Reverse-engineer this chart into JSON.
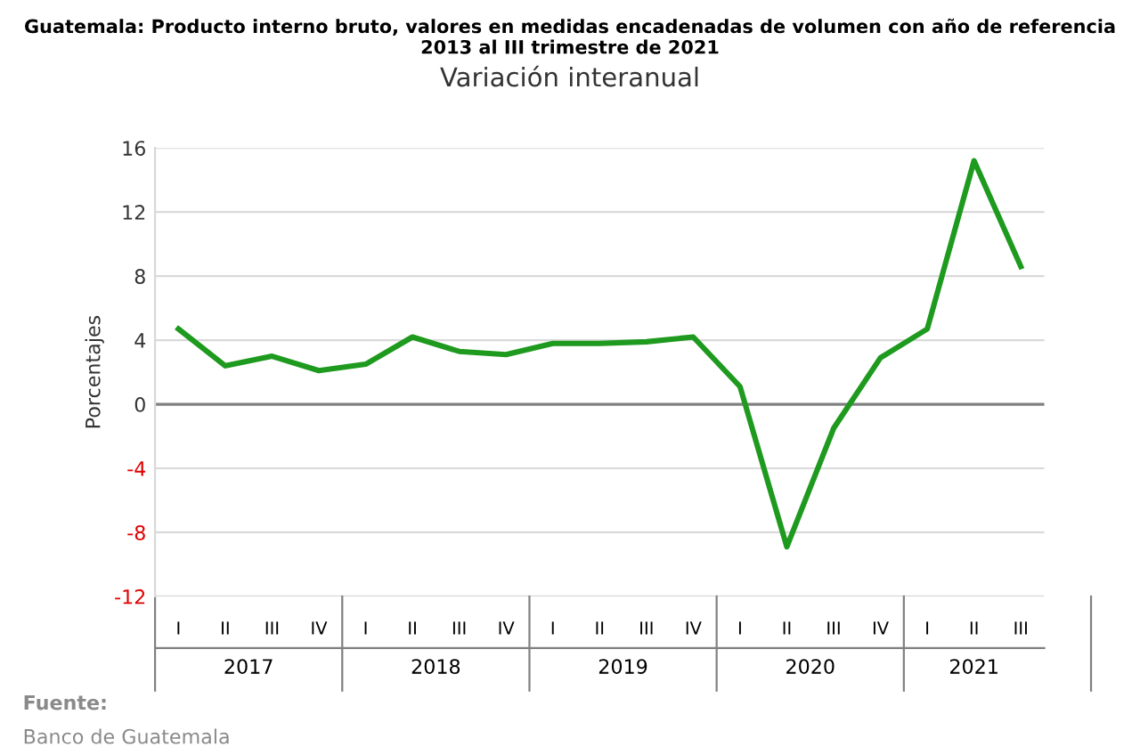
{
  "chart_data": {
    "type": "line",
    "title": "Guatemala: Producto interno bruto, valores en medidas encadenadas de volumen con año de referencia 2013 al III trimestre de 2021",
    "subtitle": "Variación interanual",
    "ylabel": "Porcentajes",
    "categories": [
      "I",
      "II",
      "III",
      "IV",
      "I",
      "II",
      "III",
      "IV",
      "I",
      "II",
      "III",
      "IV",
      "I",
      "II",
      "III",
      "IV",
      "I",
      "II",
      "III"
    ],
    "series": [
      {
        "color": "#1e9a1e",
        "values": [
          4.7,
          2.4,
          3.0,
          2.1,
          2.5,
          4.2,
          3.3,
          3.1,
          3.8,
          3.8,
          3.9,
          4.2,
          1.1,
          -8.9,
          -1.5,
          2.9,
          4.7,
          15.2,
          8.6
        ]
      }
    ],
    "ylim": [
      -12,
      16
    ],
    "yticks": [
      -12,
      -8,
      -4,
      0,
      4,
      8,
      12,
      16
    ],
    "grid": "y",
    "marker": "none",
    "line_style": "solid",
    "ref_lines": [
      {
        "axis": "y",
        "value": 0,
        "color": "#808080"
      }
    ],
    "annotations": [
      "2017",
      "2018",
      "2019",
      "2020",
      "2021",
      "Fuente:",
      "Banco de Guatemala"
    ]
  }
}
